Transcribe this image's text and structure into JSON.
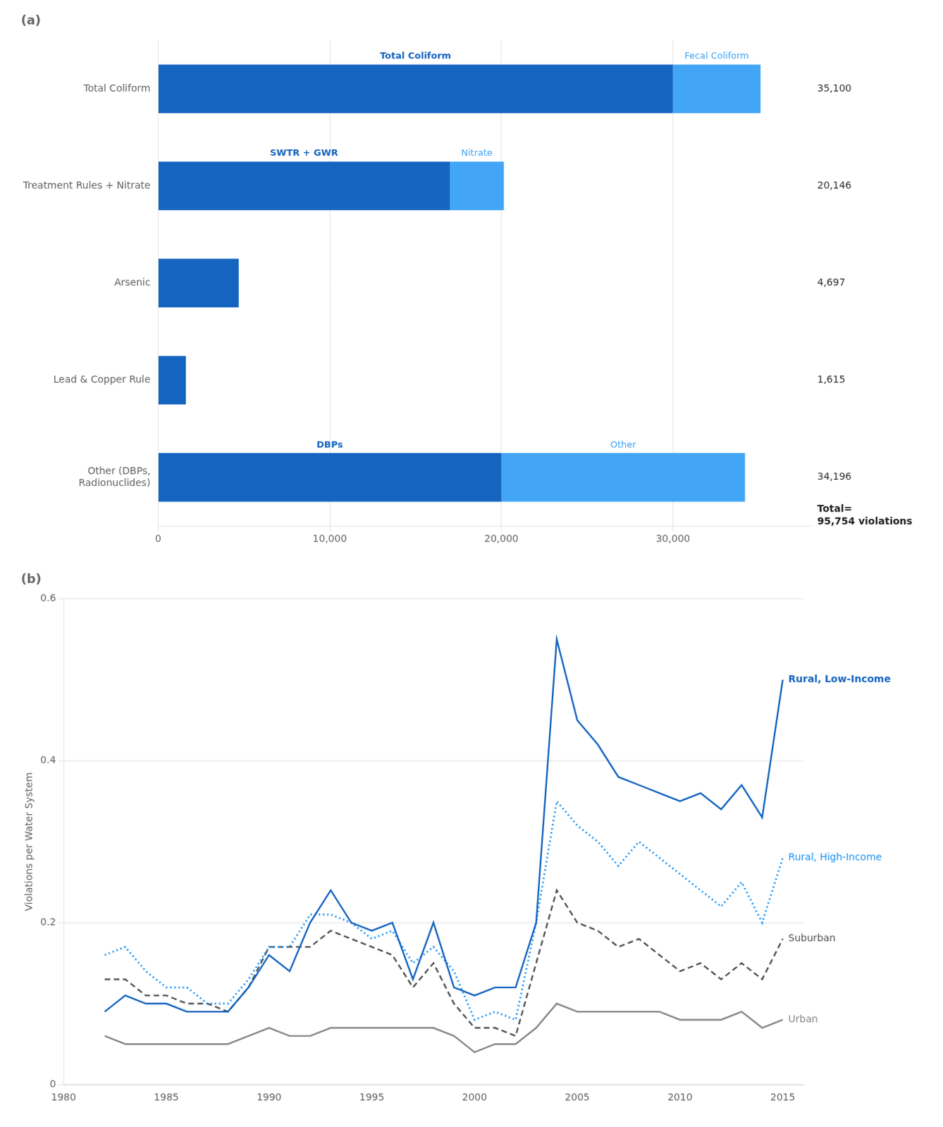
{
  "chart_data": [
    {
      "type": "bar",
      "orientation": "horizontal",
      "stacked": true,
      "title": "(a)",
      "categories": [
        "Total Coliform",
        "Treatment Rules + Nitrate",
        "Arsenic",
        "Lead & Copper Rule",
        "Other (DBPs,\nRadionuclides)"
      ],
      "series": [
        {
          "color": "#1565C0",
          "values": [
            30000,
            17000,
            4697,
            1615,
            20000
          ]
        },
        {
          "color": "#42A5F5",
          "values": [
            5100,
            3146,
            0,
            0,
            14196
          ]
        }
      ],
      "xlim": [
        0,
        38000
      ],
      "xticks": [
        0,
        {
          "value": 10000,
          "label": "10,000"
        },
        {
          "value": 20000,
          "label": "20,000"
        },
        {
          "value": 30000,
          "label": "30,000"
        }
      ],
      "grid": "x",
      "annotations": [
        {
          "text": "Total Coliform",
          "category": "Total Coliform",
          "series": 0
        },
        {
          "text": "Fecal Coliform",
          "category": "Total Coliform",
          "series": 1
        },
        {
          "text": "SWTR + GWR",
          "category": "Treatment Rules + Nitrate",
          "series": 0
        },
        {
          "text": "Nitrate",
          "category": "Treatment Rules + Nitrate",
          "series": 1
        },
        {
          "text": "DBPs",
          "category": "Other (DBPs,\nRadionuclides)",
          "series": 0
        },
        {
          "text": "Other",
          "category": "Other (DBPs,\nRadionuclides)",
          "series": 1
        },
        {
          "text": "35,100",
          "category": "Total Coliform"
        },
        {
          "text": "20,146",
          "category": "Treatment Rules + Nitrate"
        },
        {
          "text": "4,697",
          "category": "Arsenic"
        },
        {
          "text": "1,615",
          "category": "Lead & Copper Rule"
        },
        {
          "text": "34,196",
          "category": "Other (DBPs,\nRadionuclides)"
        },
        {
          "text": "Total=\n95,754 violations"
        }
      ]
    },
    {
      "type": "line",
      "title": "(b)",
      "x": [
        1982,
        1983,
        1984,
        1985,
        1986,
        1987,
        1988,
        1989,
        1990,
        1991,
        1992,
        1993,
        1994,
        1995,
        1996,
        1997,
        1998,
        1999,
        2000,
        2001,
        2002,
        2003,
        2004,
        2005,
        2006,
        2007,
        2008,
        2009,
        2010,
        2011,
        2012,
        2013,
        2014,
        2015
      ],
      "series": [
        {
          "name": "Rural, Low-Income",
          "color": "#1565C0",
          "line_style": "solid",
          "values": [
            0.09,
            0.11,
            0.1,
            0.1,
            0.09,
            0.09,
            0.09,
            0.12,
            0.16,
            0.14,
            0.2,
            0.24,
            0.2,
            0.19,
            0.2,
            0.13,
            0.2,
            0.12,
            0.11,
            0.12,
            0.12,
            0.2,
            0.55,
            0.45,
            0.42,
            0.38,
            0.37,
            0.36,
            0.35,
            0.36,
            0.34,
            0.37,
            0.33,
            0.5
          ]
        },
        {
          "name": "Rural, High-Income",
          "color": "#2196F3",
          "line_style": "dotted",
          "values": [
            0.16,
            0.17,
            0.14,
            0.12,
            0.12,
            0.1,
            0.1,
            0.13,
            0.17,
            0.17,
            0.21,
            0.21,
            0.2,
            0.18,
            0.19,
            0.15,
            0.17,
            0.14,
            0.08,
            0.09,
            0.08,
            0.2,
            0.35,
            0.32,
            0.3,
            0.27,
            0.3,
            0.28,
            0.26,
            0.24,
            0.22,
            0.25,
            0.2,
            0.28
          ]
        },
        {
          "name": "Suburban",
          "color": "#555555",
          "line_style": "dashed",
          "values": [
            0.13,
            0.13,
            0.11,
            0.11,
            0.1,
            0.1,
            0.09,
            0.12,
            0.17,
            0.17,
            0.17,
            0.19,
            0.18,
            0.17,
            0.16,
            0.12,
            0.15,
            0.1,
            0.07,
            0.07,
            0.06,
            0.15,
            0.24,
            0.2,
            0.19,
            0.17,
            0.18,
            0.16,
            0.14,
            0.15,
            0.13,
            0.15,
            0.13,
            0.18
          ]
        },
        {
          "name": "Urban",
          "color": "#888888",
          "line_style": "solid",
          "values": [
            0.06,
            0.05,
            0.05,
            0.05,
            0.05,
            0.05,
            0.05,
            0.06,
            0.07,
            0.06,
            0.06,
            0.07,
            0.07,
            0.07,
            0.07,
            0.07,
            0.07,
            0.06,
            0.04,
            0.05,
            0.05,
            0.07,
            0.1,
            0.09,
            0.09,
            0.09,
            0.09,
            0.09,
            0.08,
            0.08,
            0.08,
            0.09,
            0.07,
            0.08
          ]
        }
      ],
      "xlim": [
        1980,
        2016
      ],
      "xticks": [
        1980,
        1985,
        1990,
        1995,
        2000,
        2005,
        2010,
        2015
      ],
      "ylim": [
        0,
        0.6
      ],
      "yticks": [
        0,
        0.2,
        0.4,
        0.6
      ],
      "ylabel": "Violations per Water System",
      "grid": "y",
      "legend": false
    }
  ]
}
